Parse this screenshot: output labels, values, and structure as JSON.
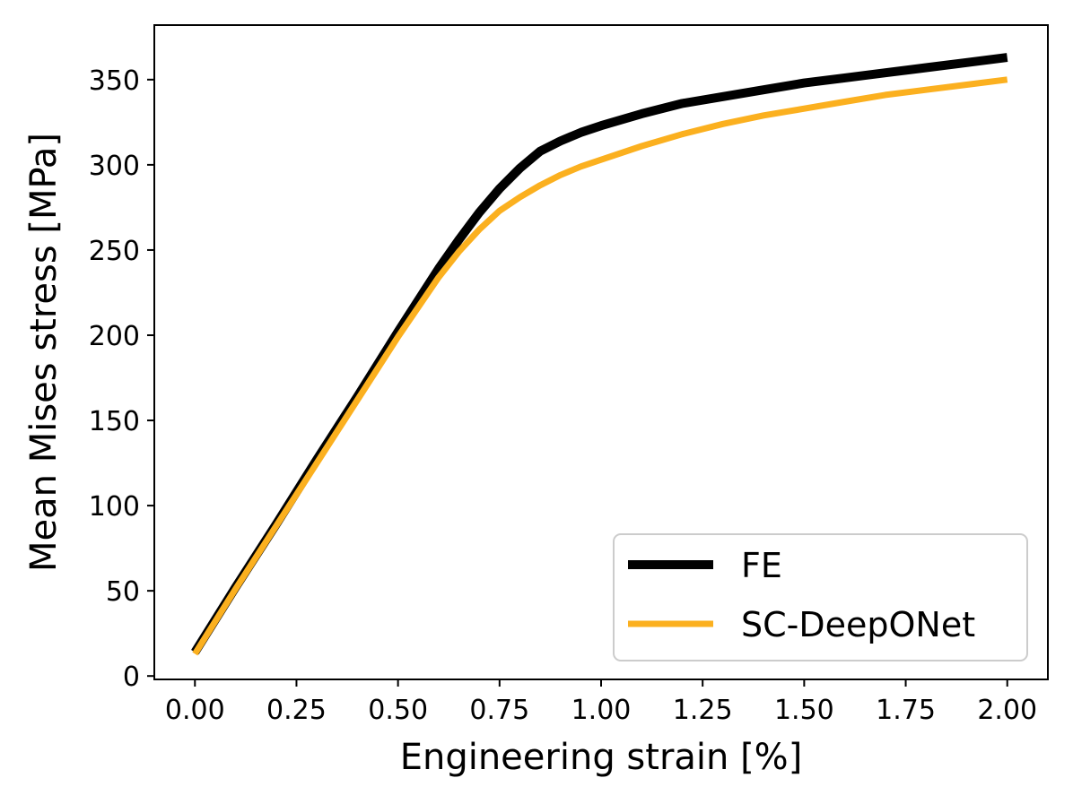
{
  "chart_data": {
    "type": "line",
    "title": "",
    "xlabel": "Engineering strain [%]",
    "ylabel": "Mean Mises stress [MPa]",
    "xlim": [
      -0.1,
      2.1
    ],
    "ylim": [
      -2,
      382
    ],
    "xticks": [
      0.0,
      0.25,
      0.5,
      0.75,
      1.0,
      1.25,
      1.5,
      1.75,
      2.0
    ],
    "xtick_labels": [
      "0.00",
      "0.25",
      "0.50",
      "0.75",
      "1.00",
      "1.25",
      "1.50",
      "1.75",
      "2.00"
    ],
    "yticks": [
      0,
      50,
      100,
      150,
      200,
      250,
      300,
      350
    ],
    "ytick_labels": [
      "0",
      "50",
      "100",
      "150",
      "200",
      "250",
      "300",
      "350"
    ],
    "grid": false,
    "legend_position": "lower-right",
    "series": [
      {
        "name": "FE",
        "color": "#000000",
        "x": [
          0.0,
          0.1,
          0.2,
          0.3,
          0.4,
          0.5,
          0.6,
          0.65,
          0.7,
          0.75,
          0.8,
          0.85,
          0.9,
          0.95,
          1.0,
          1.1,
          1.2,
          1.3,
          1.4,
          1.5,
          1.6,
          1.7,
          1.8,
          1.9,
          2.0
        ],
        "values": [
          14,
          52,
          89,
          127,
          164,
          202,
          239,
          256,
          272,
          286,
          298,
          308,
          314,
          319,
          323,
          330,
          336,
          340,
          344,
          348,
          351,
          354,
          357,
          360,
          363
        ]
      },
      {
        "name": "SC-DeepONet",
        "color": "#FBB01F",
        "x": [
          0.0,
          0.1,
          0.2,
          0.3,
          0.4,
          0.5,
          0.6,
          0.65,
          0.7,
          0.75,
          0.8,
          0.85,
          0.9,
          0.95,
          1.0,
          1.1,
          1.2,
          1.3,
          1.4,
          1.5,
          1.6,
          1.7,
          1.8,
          1.9,
          2.0
        ],
        "values": [
          13,
          51,
          88,
          125,
          162,
          199,
          234,
          249,
          262,
          273,
          281,
          288,
          294,
          299,
          303,
          311,
          318,
          324,
          329,
          333,
          337,
          341,
          344,
          347,
          350
        ]
      }
    ]
  }
}
